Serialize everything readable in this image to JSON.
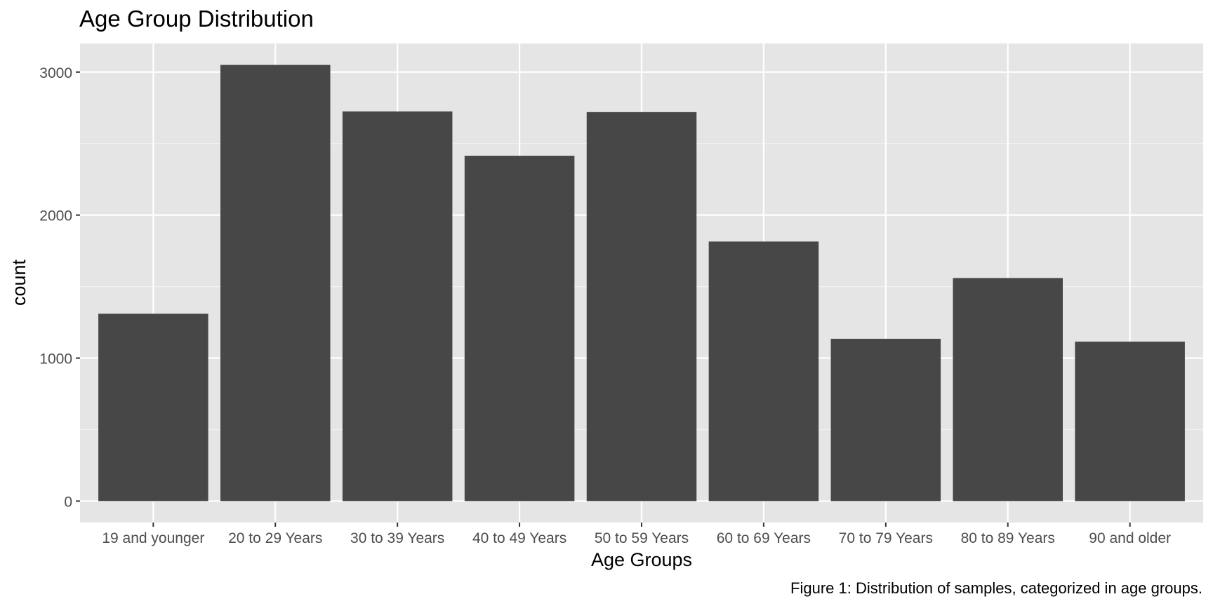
{
  "chart_data": {
    "type": "bar",
    "title": "Age Group Distribution",
    "xlabel": "Age Groups",
    "ylabel": "count",
    "caption": "Figure 1: Distribution of samples, categorized in age groups.",
    "categories": [
      "19 and younger",
      "20 to 29 Years",
      "30 to 39 Years",
      "40 to 49 Years",
      "50 to 59 Years",
      "60 to 69 Years",
      "70 to 79 Years",
      "80 to 89 Years",
      "90 and older"
    ],
    "values": [
      1310,
      3050,
      2725,
      2415,
      2720,
      1815,
      1135,
      1560,
      1115
    ],
    "ylim": [
      -150,
      3200
    ],
    "yticks": [
      0,
      1000,
      2000,
      3000
    ],
    "grid": true,
    "legend": "none",
    "colors": {
      "bar": "#474747",
      "panel": "#e5e5e5",
      "grid_major": "#ffffff",
      "grid_minor": "#f2f2f2",
      "axis_text": "#4d4d4d",
      "text": "#000000"
    }
  }
}
